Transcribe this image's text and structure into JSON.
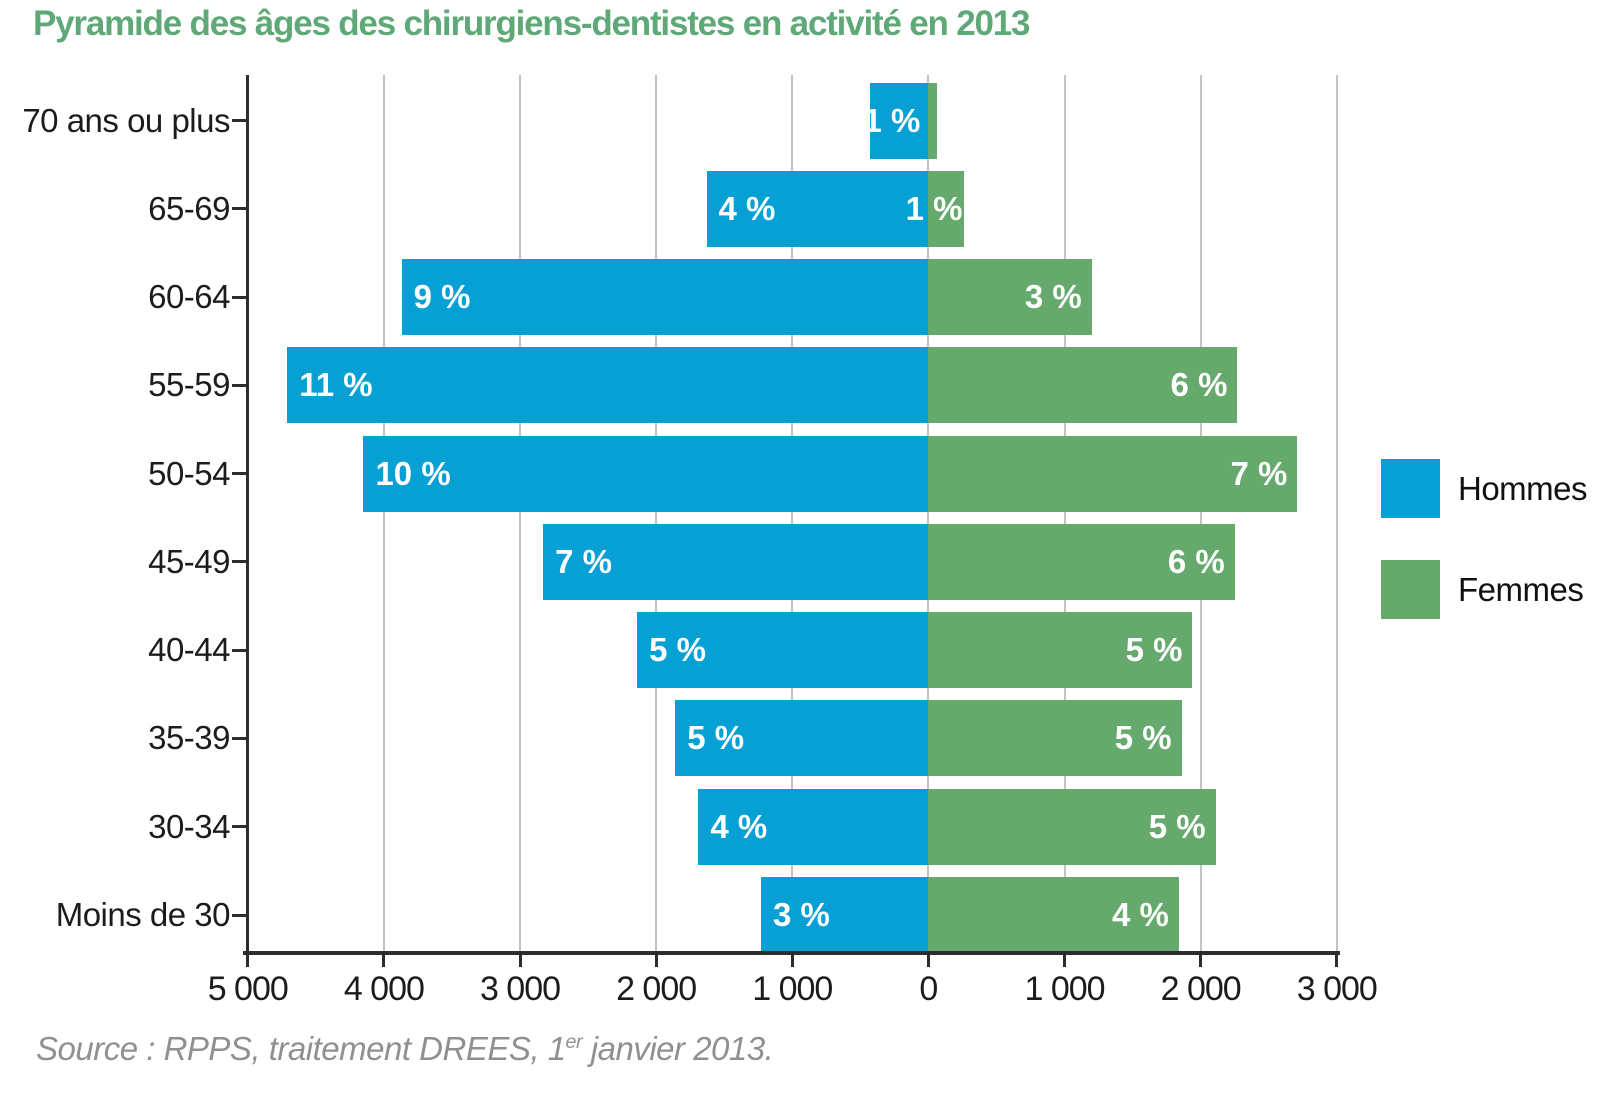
{
  "title": "Pyramide des âges des chirurgiens-dentistes en activité en 2013",
  "source": {
    "prefix": "Source : RPPS, traitement DREES, 1",
    "sup": "er",
    "suffix": " janvier 2013."
  },
  "legend": [
    {
      "label": "Hommes",
      "color": "#07a0d5"
    },
    {
      "label": "Femmes",
      "color": "#66a96d"
    }
  ],
  "colors": {
    "title_green": "#5fa878",
    "hommes_blue": "#07a0d5",
    "femmes_green": "#66a96d",
    "gridline": "#c3c3c3",
    "axis": "#2d2d2d",
    "axis_text": "#1c1c1c",
    "source_gray": "#909090",
    "bar_label_white": "#ffffff"
  },
  "chart_data": {
    "type": "bar",
    "subtype": "population-pyramid-horizontal",
    "title": "Pyramide des âges des chirurgiens-dentistes en activité en 2013",
    "xlabel": "",
    "ylabel": "",
    "grid": "vertical-gridlines-on",
    "legend_position": "right-center",
    "categories": [
      "70 ans ou plus",
      "65-69",
      "60-64",
      "55-59",
      "50-54",
      "45-49",
      "40-44",
      "35-39",
      "30-34",
      "Moins de 30"
    ],
    "series": [
      {
        "name": "Hommes",
        "side": "left",
        "color": "#07a0d5",
        "values": [
          430,
          1630,
          3870,
          4710,
          4150,
          2830,
          2140,
          1860,
          1690,
          1230
        ],
        "labels": [
          "1 %",
          "4 %",
          "9 %",
          "11 %",
          "10 %",
          "7 %",
          "5 %",
          "5 %",
          "4 %",
          "3 %"
        ]
      },
      {
        "name": "Femmes",
        "side": "right",
        "color": "#66a96d",
        "values": [
          65,
          265,
          1200,
          2270,
          2710,
          2250,
          1940,
          1860,
          2110,
          1840
        ],
        "labels": [
          "",
          "1 %",
          "3 %",
          "6 %",
          "7 %",
          "6 %",
          "5 %",
          "5 %",
          "5 %",
          "4 %"
        ]
      }
    ],
    "x_axis": {
      "tick_labels": [
        "5 000",
        "4 000",
        "3 000",
        "2 000",
        "1 000",
        "0",
        "1 000",
        "2 000",
        "3 000"
      ],
      "tick_values": [
        -5000,
        -4000,
        -3000,
        -2000,
        -1000,
        0,
        1000,
        2000,
        3000
      ],
      "left_max": 5000,
      "right_max": 3000
    }
  }
}
